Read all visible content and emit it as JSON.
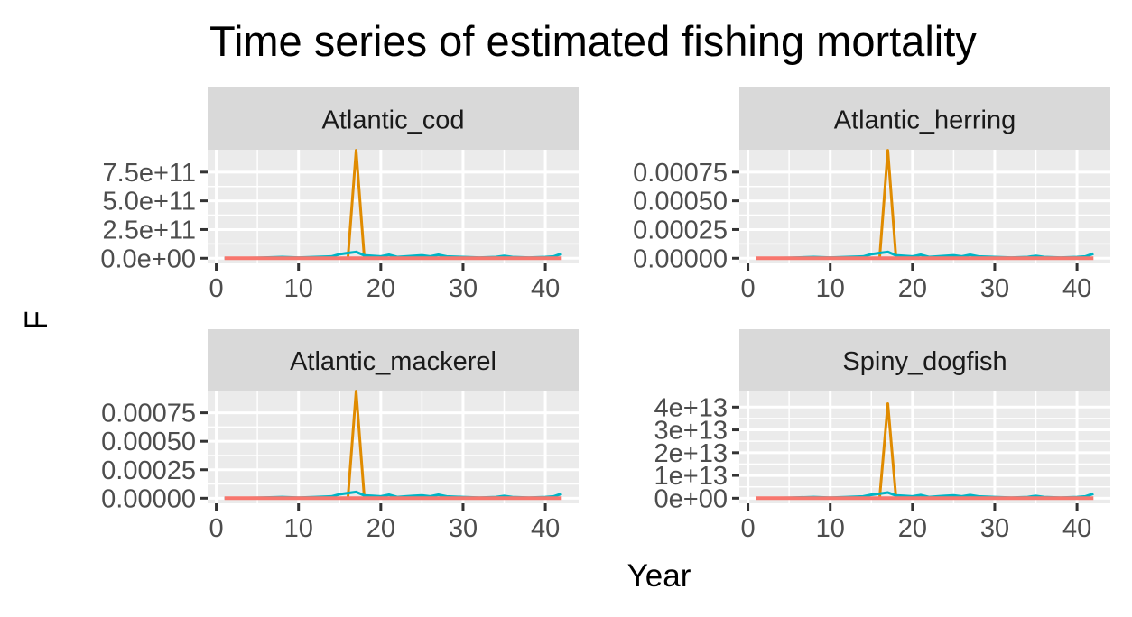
{
  "chart_data": {
    "type": "line",
    "title": "Time series of estimated fishing mortality",
    "xlabel": "Year",
    "ylabel": "F",
    "grid": true,
    "panels": [
      {
        "label": "Atlantic_cod",
        "xlim": [
          1,
          42
        ],
        "xticks": [
          0,
          10,
          20,
          30,
          40
        ],
        "ylim": [
          0,
          900000000000
        ],
        "yticks": [
          0,
          250000000000,
          500000000000,
          750000000000
        ],
        "ytick_labels": [
          "0.0e+00",
          "2.5e+11",
          "5.0e+11",
          "7.5e+11"
        ],
        "series": [
          {
            "color": "#E08B00",
            "x": [
              15,
              16,
              17,
              18,
              19
            ],
            "y": [
              0,
              0,
              940000000000,
              0,
              0
            ]
          },
          {
            "color": "#00B4C4",
            "x": [
              1,
              5,
              8,
              10,
              12,
              14,
              15,
              16,
              17,
              18,
              19,
              20,
              21,
              22,
              23,
              24,
              25,
              26,
              27,
              28,
              30,
              32,
              34,
              35,
              36,
              38,
              40,
              41,
              42
            ],
            "y": [
              0,
              3000000000,
              10000000000,
              5000000000,
              10000000000,
              15000000000,
              35000000000,
              45000000000,
              55000000000,
              25000000000,
              20000000000,
              15000000000,
              30000000000,
              10000000000,
              15000000000,
              20000000000,
              25000000000,
              15000000000,
              30000000000,
              15000000000,
              10000000000,
              5000000000,
              10000000000,
              20000000000,
              10000000000,
              5000000000,
              10000000000,
              15000000000,
              40000000000
            ]
          },
          {
            "color": "#F8766D",
            "x": [
              1,
              42
            ],
            "y": [
              0,
              0
            ]
          }
        ]
      },
      {
        "label": "Atlantic_herring",
        "xlim": [
          1,
          42
        ],
        "xticks": [
          0,
          10,
          20,
          30,
          40
        ],
        "ylim": [
          0,
          0.0009
        ],
        "yticks": [
          0,
          0.00025,
          0.0005,
          0.00075
        ],
        "ytick_labels": [
          "0.00000",
          "0.00025",
          "0.00050",
          "0.00075"
        ],
        "series": [
          {
            "color": "#E08B00",
            "x": [
              15,
              16,
              17,
              18,
              19
            ],
            "y": [
              0,
              0,
              0.00094,
              0,
              0
            ]
          },
          {
            "color": "#00B4C4",
            "x": [
              1,
              5,
              8,
              10,
              12,
              14,
              15,
              16,
              17,
              18,
              19,
              20,
              21,
              22,
              23,
              24,
              25,
              26,
              27,
              28,
              30,
              32,
              34,
              35,
              36,
              38,
              40,
              41,
              42
            ],
            "y": [
              0,
              3e-06,
              1e-05,
              5e-06,
              1e-05,
              1.5e-05,
              3.5e-05,
              4.5e-05,
              5.5e-05,
              2.5e-05,
              2e-05,
              1.5e-05,
              3e-05,
              1e-05,
              1.5e-05,
              2e-05,
              2.5e-05,
              1.5e-05,
              3e-05,
              1.5e-05,
              1e-05,
              5e-06,
              1e-05,
              2e-05,
              1e-05,
              5e-06,
              1e-05,
              1.5e-05,
              4e-05
            ]
          },
          {
            "color": "#F8766D",
            "x": [
              1,
              42
            ],
            "y": [
              0,
              0
            ]
          }
        ]
      },
      {
        "label": "Atlantic_mackerel",
        "xlim": [
          1,
          42
        ],
        "xticks": [
          0,
          10,
          20,
          30,
          40
        ],
        "ylim": [
          0,
          0.0009
        ],
        "yticks": [
          0,
          0.00025,
          0.0005,
          0.00075
        ],
        "ytick_labels": [
          "0.00000",
          "0.00025",
          "0.00050",
          "0.00075"
        ],
        "series": [
          {
            "color": "#E08B00",
            "x": [
              15,
              16,
              17,
              18,
              19
            ],
            "y": [
              0,
              0,
              0.00094,
              0,
              0
            ]
          },
          {
            "color": "#00B4C4",
            "x": [
              1,
              5,
              8,
              10,
              12,
              14,
              15,
              16,
              17,
              18,
              19,
              20,
              21,
              22,
              23,
              24,
              25,
              26,
              27,
              28,
              30,
              32,
              34,
              35,
              36,
              38,
              40,
              41,
              42
            ],
            "y": [
              0,
              3e-06,
              1e-05,
              5e-06,
              1e-05,
              1.5e-05,
              3.5e-05,
              4.5e-05,
              5.5e-05,
              2.5e-05,
              2e-05,
              1.5e-05,
              3e-05,
              1e-05,
              1.5e-05,
              2e-05,
              2.5e-05,
              1.5e-05,
              3e-05,
              1.5e-05,
              1e-05,
              5e-06,
              1e-05,
              2e-05,
              1e-05,
              5e-06,
              1e-05,
              1.5e-05,
              4e-05
            ]
          },
          {
            "color": "#F8766D",
            "x": [
              1,
              42
            ],
            "y": [
              0,
              0
            ]
          }
        ]
      },
      {
        "label": "Spiny_dogfish",
        "xlim": [
          1,
          42
        ],
        "xticks": [
          0,
          10,
          20,
          30,
          40
        ],
        "ylim": [
          0,
          45000000000000
        ],
        "yticks": [
          0,
          10000000000000,
          20000000000000,
          30000000000000,
          40000000000000
        ],
        "ytick_labels": [
          "0e+00",
          "1e+13",
          "2e+13",
          "3e+13",
          "4e+13"
        ],
        "series": [
          {
            "color": "#E08B00",
            "x": [
              15,
              16,
              17,
              18,
              19
            ],
            "y": [
              0,
              0,
              41500000000000,
              0,
              0
            ]
          },
          {
            "color": "#00B4C4",
            "x": [
              1,
              5,
              8,
              10,
              12,
              14,
              15,
              16,
              17,
              18,
              19,
              20,
              21,
              22,
              23,
              24,
              25,
              26,
              27,
              28,
              30,
              32,
              34,
              35,
              36,
              38,
              40,
              41,
              42
            ],
            "y": [
              0,
              150000000000,
              500000000000,
              250000000000,
              500000000000,
              750000000000,
              1500000000000,
              2000000000000,
              2500000000000,
              1200000000000,
              1000000000000,
              750000000000,
              1400000000000,
              500000000000,
              750000000000,
              1000000000000,
              1200000000000,
              750000000000,
              1400000000000,
              750000000000,
              500000000000,
              250000000000,
              500000000000,
              1000000000000,
              500000000000,
              250000000000,
              500000000000,
              750000000000,
              2000000000000
            ]
          },
          {
            "color": "#F8766D",
            "x": [
              1,
              42
            ],
            "y": [
              0,
              0
            ]
          }
        ]
      }
    ]
  },
  "colors": {
    "panel_background": "#EBEBEB",
    "strip_background": "#D9D9D9",
    "grid_line": "#FFFFFF",
    "tick_label": "#4D4D4D",
    "tick_mark": "#333333"
  }
}
